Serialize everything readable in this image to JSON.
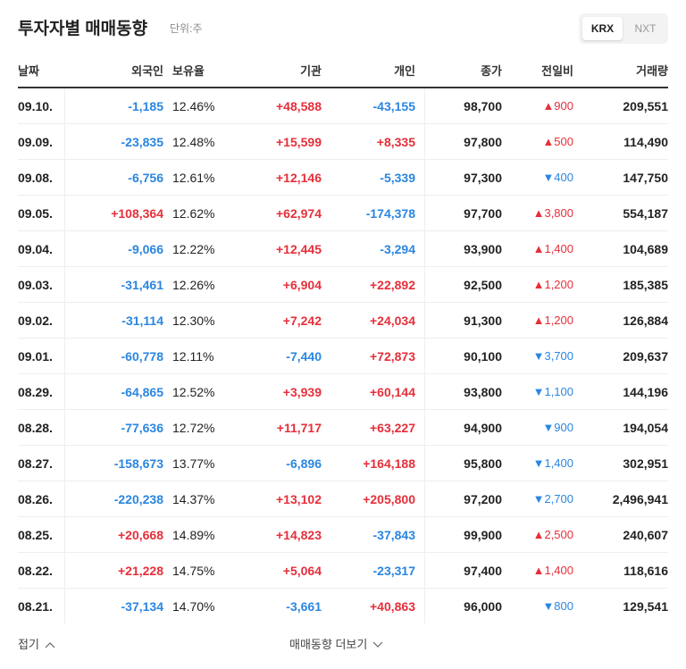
{
  "header": {
    "title": "투자자별 매매동향",
    "unit": "단위:주",
    "tabs": [
      "KRX",
      "NXT"
    ]
  },
  "table": {
    "columns": [
      "날짜",
      "외국인",
      "보유율",
      "기관",
      "개인",
      "종가",
      "전일비",
      "거래량"
    ],
    "rows": [
      [
        "09.10.",
        "-1,185",
        "12.46%",
        "+48,588",
        "-43,155",
        "98,700",
        "▲900",
        "209,551"
      ],
      [
        "09.09.",
        "-23,835",
        "12.48%",
        "+15,599",
        "+8,335",
        "97,800",
        "▲500",
        "114,490"
      ],
      [
        "09.08.",
        "-6,756",
        "12.61%",
        "+12,146",
        "-5,339",
        "97,300",
        "▼400",
        "147,750"
      ],
      [
        "09.05.",
        "+108,364",
        "12.62%",
        "+62,974",
        "-174,378",
        "97,700",
        "▲3,800",
        "554,187"
      ],
      [
        "09.04.",
        "-9,066",
        "12.22%",
        "+12,445",
        "-3,294",
        "93,900",
        "▲1,400",
        "104,689"
      ],
      [
        "09.03.",
        "-31,461",
        "12.26%",
        "+6,904",
        "+22,892",
        "92,500",
        "▲1,200",
        "185,385"
      ],
      [
        "09.02.",
        "-31,114",
        "12.30%",
        "+7,242",
        "+24,034",
        "91,300",
        "▲1,200",
        "126,884"
      ],
      [
        "09.01.",
        "-60,778",
        "12.11%",
        "-7,440",
        "+72,873",
        "90,100",
        "▼3,700",
        "209,637"
      ],
      [
        "08.29.",
        "-64,865",
        "12.52%",
        "+3,939",
        "+60,144",
        "93,800",
        "▼1,100",
        "144,196"
      ],
      [
        "08.28.",
        "-77,636",
        "12.72%",
        "+11,717",
        "+63,227",
        "94,900",
        "▼900",
        "194,054"
      ],
      [
        "08.27.",
        "-158,673",
        "13.77%",
        "-6,896",
        "+164,188",
        "95,800",
        "▼1,400",
        "302,951"
      ],
      [
        "08.26.",
        "-220,238",
        "14.37%",
        "+13,102",
        "+205,800",
        "97,200",
        "▼2,700",
        "2,496,941"
      ],
      [
        "08.25.",
        "+20,668",
        "14.89%",
        "+14,823",
        "-37,843",
        "99,900",
        "▲2,500",
        "240,607"
      ],
      [
        "08.22.",
        "+21,228",
        "14.75%",
        "+5,064",
        "-23,317",
        "97,400",
        "▲1,400",
        "118,616"
      ],
      [
        "08.21.",
        "-37,134",
        "14.70%",
        "-3,661",
        "+40,863",
        "96,000",
        "▼800",
        "129,541"
      ]
    ]
  },
  "footer": {
    "collapse": "접기",
    "more": "매매동향 더보기"
  }
}
